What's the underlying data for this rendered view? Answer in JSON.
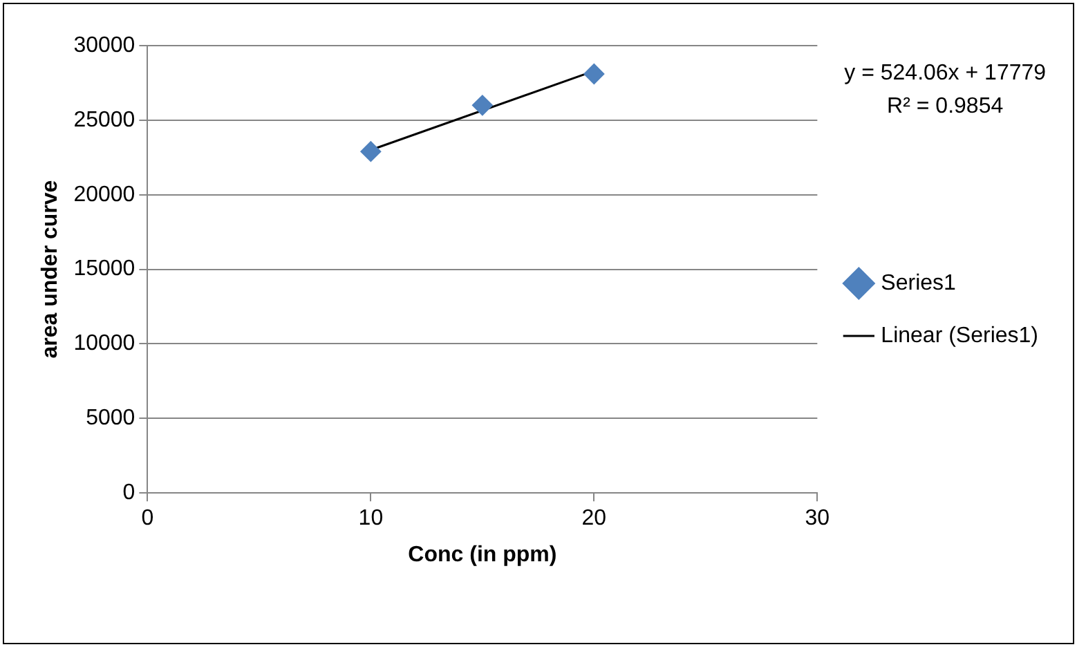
{
  "chart_data": {
    "type": "scatter",
    "xlabel": "Conc (in ppm)",
    "ylabel": "area under curve",
    "xlim": [
      0,
      30
    ],
    "xticks": [
      0,
      10,
      20,
      30
    ],
    "ylim": [
      0,
      30000
    ],
    "yticks": [
      0,
      5000,
      10000,
      15000,
      20000,
      25000,
      30000
    ],
    "grid": "y",
    "legend": "right",
    "annotations": [
      "y = 524.06x + 17779",
      "R² = 0.9854"
    ],
    "series": [
      {
        "name": "Series1",
        "color": "#4f81bd",
        "marker": "diamond",
        "x": [
          10,
          15,
          20
        ],
        "values": [
          22900,
          26000,
          28100
        ]
      },
      {
        "name": "Linear (Series1)",
        "type": "line",
        "color": "#000000",
        "marker": "none",
        "x": [
          10,
          20
        ],
        "values": [
          23000,
          28300
        ]
      }
    ]
  }
}
